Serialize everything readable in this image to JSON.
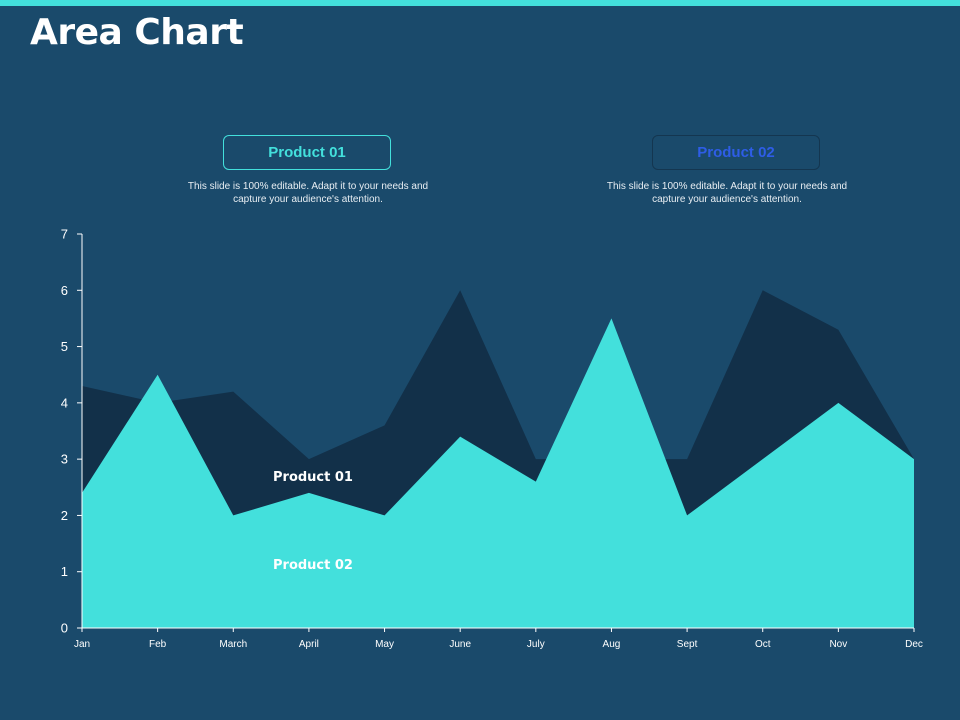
{
  "slide": {
    "title": "Area Chart"
  },
  "legend": [
    {
      "label": "Product 01",
      "description": "This slide is 100% editable.  Adapt it to your needs and capture your audience's attention."
    },
    {
      "label": "Product 02",
      "description": "This slide is 100% editable.  Adapt it to your needs and capture your audience's attention."
    }
  ],
  "colors": {
    "background": "#1a4a6b",
    "accent": "#43e0dc",
    "product01_area": "#123049",
    "product02_area": "#43e0dc",
    "product02_legend_text": "#2e5de6"
  },
  "chart_data": {
    "type": "area",
    "categories": [
      "Jan",
      "Feb",
      "March",
      "April",
      "May",
      "June",
      "July",
      "Aug",
      "Sept",
      "Oct",
      "Nov",
      "Dec"
    ],
    "series": [
      {
        "name": "Product 01",
        "values": [
          4.3,
          4.0,
          4.2,
          3.0,
          3.6,
          6.0,
          3.0,
          3.0,
          3.0,
          6.0,
          5.3,
          3.0
        ]
      },
      {
        "name": "Product 02",
        "values": [
          2.4,
          4.5,
          2.0,
          2.4,
          2.0,
          3.4,
          2.6,
          5.5,
          2.0,
          3.0,
          4.0,
          3.0
        ]
      }
    ],
    "yticks": [
      "0",
      "1",
      "2",
      "3",
      "4",
      "5",
      "6",
      "7"
    ],
    "ylim": [
      0,
      7
    ],
    "grid": false,
    "series_labels": [
      "Product 01",
      "Product 02"
    ]
  }
}
